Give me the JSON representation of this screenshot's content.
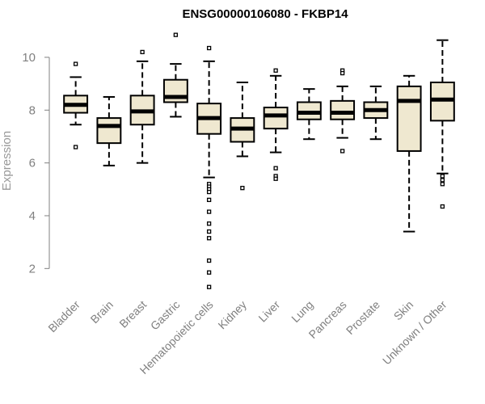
{
  "chart_data": {
    "type": "boxplot",
    "title": "ENSG00000106080 - FKBP14",
    "xlabel": "",
    "ylabel": "Expression",
    "ylim": [
      1.0,
      11.1
    ],
    "yticks": [
      2,
      4,
      6,
      8,
      10
    ],
    "box_fill": "#efe8d0",
    "categories": [
      "Bladder",
      "Brain",
      "Breast",
      "Gastric",
      "Hematopoietic cells",
      "Kidney",
      "Liver",
      "Lung",
      "Pancreas",
      "Prostate",
      "Skin",
      "Unknown / Other"
    ],
    "boxes": [
      {
        "name": "Bladder",
        "whisker_low": 7.45,
        "q1": 7.9,
        "median": 8.2,
        "q3": 8.55,
        "whisker_high": 9.25,
        "outliers": [
          9.75,
          6.6
        ]
      },
      {
        "name": "Brain",
        "whisker_low": 5.9,
        "q1": 6.75,
        "median": 7.4,
        "q3": 7.7,
        "whisker_high": 8.5,
        "outliers": []
      },
      {
        "name": "Breast",
        "whisker_low": 6.0,
        "q1": 7.45,
        "median": 7.95,
        "q3": 8.55,
        "whisker_high": 9.85,
        "outliers": [
          10.2
        ]
      },
      {
        "name": "Gastric",
        "whisker_low": 7.75,
        "q1": 8.3,
        "median": 8.5,
        "q3": 9.15,
        "whisker_high": 9.75,
        "outliers": [
          10.85
        ]
      },
      {
        "name": "Hematopoietic cells",
        "whisker_low": 5.45,
        "q1": 7.1,
        "median": 7.7,
        "q3": 8.25,
        "whisker_high": 9.85,
        "outliers": [
          10.35,
          5.2,
          5.1,
          5.0,
          4.9,
          4.6,
          4.15,
          3.7,
          3.4,
          3.15,
          2.3,
          1.85,
          1.3
        ]
      },
      {
        "name": "Kidney",
        "whisker_low": 6.25,
        "q1": 6.8,
        "median": 7.3,
        "q3": 7.7,
        "whisker_high": 9.05,
        "outliers": [
          5.05
        ]
      },
      {
        "name": "Liver",
        "whisker_low": 6.4,
        "q1": 7.3,
        "median": 7.8,
        "q3": 8.1,
        "whisker_high": 9.3,
        "outliers": [
          9.5,
          5.8,
          5.5,
          5.4
        ]
      },
      {
        "name": "Lung",
        "whisker_low": 6.9,
        "q1": 7.65,
        "median": 7.9,
        "q3": 8.3,
        "whisker_high": 8.8,
        "outliers": []
      },
      {
        "name": "Pancreas",
        "whisker_low": 6.95,
        "q1": 7.65,
        "median": 7.9,
        "q3": 8.35,
        "whisker_high": 8.9,
        "outliers": [
          9.5,
          9.4,
          6.45
        ]
      },
      {
        "name": "Prostate",
        "whisker_low": 6.9,
        "q1": 7.7,
        "median": 8.0,
        "q3": 8.3,
        "whisker_high": 8.9,
        "outliers": []
      },
      {
        "name": "Skin",
        "whisker_low": 3.4,
        "q1": 6.45,
        "median": 8.35,
        "q3": 8.9,
        "whisker_high": 9.3,
        "outliers": []
      },
      {
        "name": "Unknown / Other",
        "whisker_low": 5.6,
        "q1": 7.6,
        "median": 8.4,
        "q3": 9.05,
        "whisker_high": 10.65,
        "outliers": [
          5.5,
          5.35,
          5.2,
          4.35
        ]
      }
    ]
  }
}
